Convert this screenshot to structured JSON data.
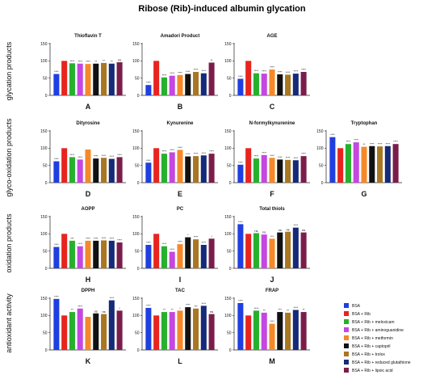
{
  "figure": {
    "title": "Ribose (Rib)-induced albumin glycation",
    "row_labels": [
      "glycation products",
      "glyco-oxidation products",
      "oxidation products",
      "antioxidant activity"
    ],
    "legend": [
      "BSA",
      "BSA + Rib",
      "BSA + Rib + meloxicam",
      "BSA + Rib + aminoguanidine",
      "BSA + Rib + metformin",
      "BSA + Rib + captopril",
      "BSA + Rib + trolox",
      "BSA + Rib + reduced glutathione",
      "BSA + Rib + lipoic acid"
    ],
    "colors": [
      "#1f3fe0",
      "#e8241e",
      "#25b12c",
      "#c447e0",
      "#f5892a",
      "#111111",
      "#a97722",
      "#152a78",
      "#7a1d4a"
    ]
  },
  "chart_data": [
    {
      "type": "bar",
      "title": "Thioflavin T",
      "letter": "A",
      "ylim": [
        0,
        150
      ],
      "yticks": [
        "0",
        "50",
        "100",
        "150"
      ],
      "values": [
        62,
        100,
        93,
        92,
        91,
        92,
        94,
        92,
        96
      ],
      "annotations": [
        "****",
        "",
        "****",
        "****",
        "****",
        "**",
        "**",
        "**",
        "ns"
      ]
    },
    {
      "type": "bar",
      "title": "Amadori Product",
      "letter": "B",
      "ylim": [
        0,
        150
      ],
      "yticks": [
        "0",
        "50",
        "100",
        "150"
      ],
      "values": [
        30,
        100,
        52,
        57,
        59,
        62,
        68,
        64,
        95
      ],
      "annotations": [
        "****",
        "",
        "****",
        "****",
        "****",
        "****",
        "****",
        "****",
        "**"
      ]
    },
    {
      "type": "bar",
      "title": "AGE",
      "letter": "C",
      "ylim": [
        0,
        150
      ],
      "yticks": [
        "0",
        "50",
        "100",
        "150"
      ],
      "values": [
        48,
        100,
        64,
        63,
        75,
        61,
        60,
        63,
        68
      ],
      "annotations": [
        "****",
        "",
        "****",
        "****",
        "****",
        "****",
        "****",
        "****",
        "****"
      ]
    },
    {
      "type": "bar",
      "title": "Dityrosine",
      "letter": "D",
      "ylim": [
        0,
        150
      ],
      "yticks": [
        "0",
        "50",
        "100",
        "150"
      ],
      "values": [
        62,
        100,
        74,
        67,
        96,
        70,
        72,
        69,
        74
      ],
      "annotations": [
        "****",
        "",
        "****",
        "****",
        "",
        "****",
        "****",
        "****",
        "****"
      ]
    },
    {
      "type": "bar",
      "title": "Kynurenine",
      "letter": "E",
      "ylim": [
        0,
        150
      ],
      "yticks": [
        "0",
        "50",
        "100",
        "150"
      ],
      "values": [
        58,
        100,
        84,
        88,
        95,
        76,
        77,
        79,
        84
      ],
      "annotations": [
        "****",
        "",
        "****",
        "****",
        "****",
        "****",
        "****",
        "****",
        "****"
      ]
    },
    {
      "type": "bar",
      "title": "N-formylkynurenine",
      "letter": "F",
      "ylim": [
        0,
        150
      ],
      "yticks": [
        "0",
        "50",
        "100",
        "150"
      ],
      "values": [
        52,
        100,
        70,
        80,
        72,
        67,
        66,
        65,
        77
      ],
      "annotations": [
        "****",
        "",
        "****",
        "****",
        "****",
        "****",
        "****",
        "****",
        "****"
      ]
    },
    {
      "type": "bar",
      "title": "Tryptophan",
      "letter": "G",
      "ylim": [
        0,
        150
      ],
      "yticks": [
        "0",
        "50",
        "100",
        "150"
      ],
      "values": [
        132,
        100,
        112,
        117,
        104,
        106,
        105,
        106,
        112
      ],
      "annotations": [
        "****",
        "",
        "****",
        "****",
        "**",
        "****",
        "****",
        "****",
        "****"
      ]
    },
    {
      "type": "bar",
      "title": "AOPP",
      "letter": "H",
      "ylim": [
        0,
        150
      ],
      "yticks": [
        "0",
        "50",
        "100",
        "150"
      ],
      "values": [
        62,
        100,
        80,
        64,
        80,
        80,
        81,
        80,
        75
      ],
      "annotations": [
        "****",
        "",
        "***",
        "****",
        "****",
        "****",
        "****",
        "****",
        "****"
      ]
    },
    {
      "type": "bar",
      "title": "PC",
      "letter": "I",
      "ylim": [
        0,
        150
      ],
      "yticks": [
        "0",
        "50",
        "100",
        "150"
      ],
      "values": [
        68,
        100,
        64,
        48,
        70,
        90,
        84,
        68,
        86
      ],
      "annotations": [
        "****",
        "",
        "****",
        "****",
        "****",
        "*",
        "****",
        "****",
        "*"
      ]
    },
    {
      "type": "bar",
      "title": "Total thiols",
      "letter": "J",
      "ylim": [
        0,
        150
      ],
      "yticks": [
        "0",
        "50",
        "100",
        "150"
      ],
      "values": [
        128,
        100,
        102,
        98,
        86,
        104,
        106,
        118,
        104
      ],
      "annotations": [
        "****",
        "",
        "ns",
        "ns",
        "***",
        "ns",
        "ns",
        "****",
        "ns"
      ]
    },
    {
      "type": "bar",
      "title": "DPPH",
      "letter": "K",
      "ylim": [
        0,
        150
      ],
      "yticks": [
        "0",
        "50",
        "100",
        "150"
      ],
      "values": [
        148,
        100,
        110,
        120,
        96,
        106,
        104,
        144,
        114
      ],
      "annotations": [
        "****",
        "",
        "**",
        "****",
        "",
        "ns",
        "ns",
        "****",
        "*"
      ]
    },
    {
      "type": "bar",
      "title": "TAC",
      "letter": "L",
      "ylim": [
        0,
        150
      ],
      "yticks": [
        "0",
        "50",
        "100",
        "150"
      ],
      "values": [
        122,
        100,
        110,
        110,
        114,
        124,
        120,
        128,
        104
      ],
      "annotations": [
        "****",
        "",
        "**",
        "**",
        "*",
        "****",
        "***",
        "****",
        "ns"
      ]
    },
    {
      "type": "bar",
      "title": "FRAP",
      "letter": "M",
      "ylim": [
        0,
        150
      ],
      "yticks": [
        "0",
        "50",
        "100",
        "150"
      ],
      "values": [
        136,
        100,
        114,
        108,
        76,
        110,
        108,
        116,
        110
      ],
      "annotations": [
        "****",
        "",
        "****",
        "**",
        "****",
        "***",
        "**",
        "****",
        "**"
      ]
    }
  ]
}
